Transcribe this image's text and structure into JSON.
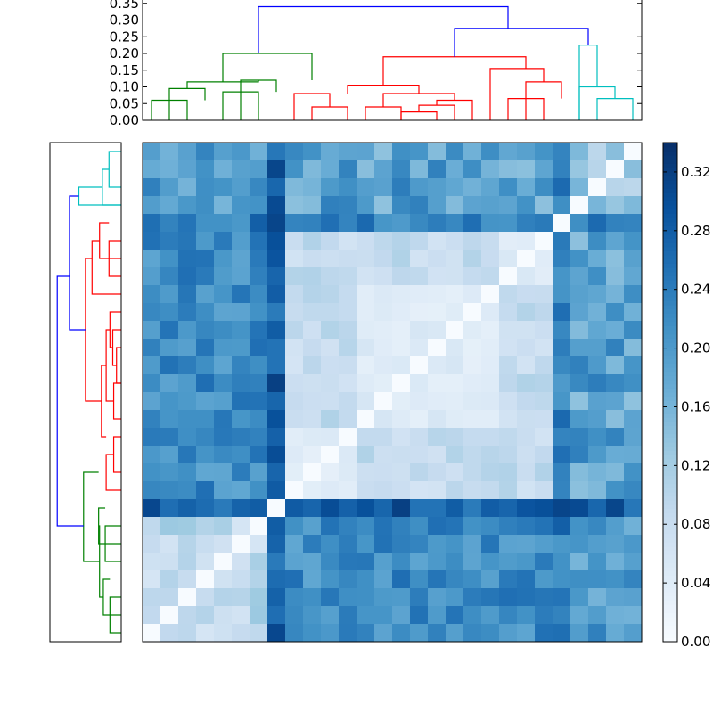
{
  "chart_data": {
    "type": "heatmap",
    "title": "",
    "description_kind": "clustered distance matrix with dendrograms",
    "n": 28,
    "colormap": {
      "name": "Blues",
      "min_color": "#f7fbff",
      "max_color": "#08306b"
    },
    "colorbar": {
      "vmin": 0.0,
      "vmax": 0.34,
      "ticks": [
        "0.00",
        "0.04",
        "0.08",
        "0.12",
        "0.16",
        "0.20",
        "0.24",
        "0.28",
        "0.32"
      ]
    },
    "top_dendrogram": {
      "ylim": [
        0,
        0.36
      ],
      "yticks": [
        "0.00",
        "0.05",
        "0.10",
        "0.15",
        "0.20",
        "0.25",
        "0.30",
        "0.35"
      ],
      "colors": {
        "g": "#008000",
        "r": "#ff0000",
        "c": "#00bfbf",
        "b": "#0000ff"
      },
      "links": [
        {
          "x": [
            1,
            1,
            3,
            3
          ],
          "y": [
            0,
            0.06,
            0.06,
            0
          ],
          "c": "g"
        },
        {
          "x": [
            2,
            2,
            4,
            4
          ],
          "y": [
            0,
            0.095,
            0.095,
            0.06
          ],
          "c": "g"
        },
        {
          "x": [
            5,
            5,
            7,
            7
          ],
          "y": [
            0,
            0.085,
            0.085,
            0
          ],
          "c": "g"
        },
        {
          "x": [
            6,
            6,
            8,
            8
          ],
          "y": [
            0,
            0.12,
            0.12,
            0.085
          ],
          "c": "g"
        },
        {
          "x": [
            3,
            3,
            7,
            7
          ],
          "y": [
            0.095,
            0.115,
            0.115,
            0.12
          ],
          "c": "g"
        },
        {
          "x": [
            5,
            5,
            10,
            10
          ],
          "y": [
            0.115,
            0.2,
            0.2,
            0.12
          ],
          "c": "g"
        },
        {
          "x": [
            10,
            10,
            12,
            12
          ],
          "y": [
            0,
            0.04,
            0.04,
            0
          ],
          "c": "r"
        },
        {
          "x": [
            9,
            9,
            11,
            11
          ],
          "y": [
            0,
            0.08,
            0.08,
            0.04
          ],
          "c": "r"
        },
        {
          "x": [
            13,
            13,
            15,
            15
          ],
          "y": [
            0,
            0.04,
            0.04,
            0
          ],
          "c": "r"
        },
        {
          "x": [
            15,
            15,
            17,
            17
          ],
          "y": [
            0,
            0.025,
            0.025,
            0
          ],
          "c": "r"
        },
        {
          "x": [
            16,
            16,
            18,
            18
          ],
          "y": [
            0.025,
            0.045,
            0.045,
            0
          ],
          "c": "r"
        },
        {
          "x": [
            17,
            17,
            19,
            19
          ],
          "y": [
            0.045,
            0.06,
            0.06,
            0
          ],
          "c": "r"
        },
        {
          "x": [
            14,
            14,
            18,
            18
          ],
          "y": [
            0.04,
            0.08,
            0.08,
            0.06
          ],
          "c": "r"
        },
        {
          "x": [
            12,
            12,
            16,
            16
          ],
          "y": [
            0.08,
            0.105,
            0.105,
            0.08
          ],
          "c": "r"
        },
        {
          "x": [
            21,
            21,
            23,
            23
          ],
          "y": [
            0,
            0.065,
            0.065,
            0
          ],
          "c": "r"
        },
        {
          "x": [
            22,
            22,
            24,
            24
          ],
          "y": [
            0,
            0.115,
            0.115,
            0.065
          ],
          "c": "r"
        },
        {
          "x": [
            20,
            20,
            23,
            23
          ],
          "y": [
            0,
            0.155,
            0.155,
            0.115
          ],
          "c": "r"
        },
        {
          "x": [
            14,
            14,
            22,
            22
          ],
          "y": [
            0.105,
            0.19,
            0.19,
            0.155
          ],
          "c": "r"
        },
        {
          "x": [
            26,
            26,
            28,
            28
          ],
          "y": [
            0,
            0.065,
            0.065,
            0
          ],
          "c": "c"
        },
        {
          "x": [
            27,
            27,
            25,
            25
          ],
          "y": [
            0.065,
            0.1,
            0.1,
            0
          ],
          "c": "c"
        },
        {
          "x": [
            25,
            25,
            26,
            26
          ],
          "y": [
            0,
            0.225,
            0.225,
            0.1
          ],
          "c": "c"
        },
        {
          "x": [
            18,
            18,
            25.5,
            25.5
          ],
          "y": [
            0.19,
            0.275,
            0.275,
            0.225
          ],
          "c": "b"
        },
        {
          "x": [
            7,
            7,
            21,
            21
          ],
          "y": [
            0.2,
            0.34,
            0.34,
            0.275
          ],
          "c": "b"
        }
      ]
    },
    "left_dendrogram_mirrors_top": true,
    "matrix_note": "symmetric dissimilarity values (data units) in dendrogram leaf order"
  }
}
